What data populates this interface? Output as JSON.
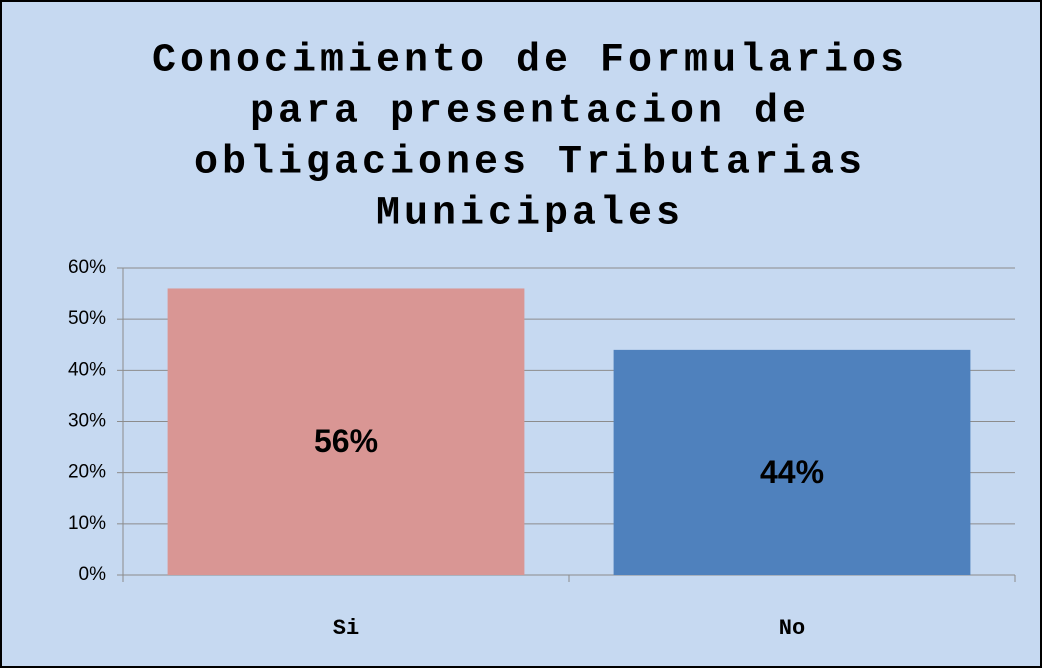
{
  "chart_data": {
    "type": "bar",
    "title": [
      "Conocimiento de Formularios",
      "para presentacion de",
      "obligaciones Tributarias",
      "Municipales"
    ],
    "categories": [
      "Si",
      "No"
    ],
    "values": [
      56,
      44
    ],
    "value_labels": [
      "56%",
      "44%"
    ],
    "colors": [
      "#d99694",
      "#4f81bd"
    ],
    "ylim": [
      0,
      60
    ],
    "yticks": [
      {
        "value": 0,
        "label": "0%"
      },
      {
        "value": 10,
        "label": "10%"
      },
      {
        "value": 20,
        "label": "20%"
      },
      {
        "value": 30,
        "label": "30%"
      },
      {
        "value": 40,
        "label": "40%"
      },
      {
        "value": 50,
        "label": "50%"
      },
      {
        "value": 60,
        "label": "60%"
      }
    ],
    "grid": true
  }
}
